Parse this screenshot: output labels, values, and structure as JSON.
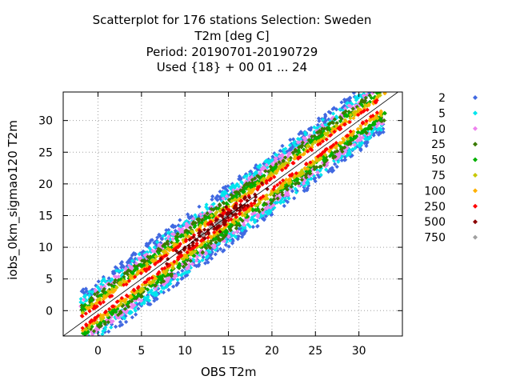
{
  "chart_data": {
    "type": "scatter",
    "title_lines": [
      "Scatterplot for  176 stations Selection: Sweden",
      "T2m [deg C]",
      "Period: 20190701-20190729",
      "Used {18} + 00 01 ... 24"
    ],
    "xlabel": "OBS T2m",
    "ylabel": "iobs_0km_sigmao120 T2m",
    "xlim": [
      -4,
      35
    ],
    "ylim": [
      -4,
      34.5
    ],
    "xticks": [
      0,
      5,
      10,
      15,
      20,
      25,
      30
    ],
    "yticks": [
      0,
      5,
      10,
      15,
      20,
      25,
      30
    ],
    "grid": true,
    "diagonal_line": true,
    "legend_position": "right",
    "legend_meaning": "point density count threshold per bin",
    "series": [
      {
        "name": "2",
        "color": "#4169e1",
        "spread": 4.2
      },
      {
        "name": "5",
        "color": "#00e5ee",
        "spread": 3.6
      },
      {
        "name": "10",
        "color": "#ee82ee",
        "spread": 3.0
      },
      {
        "name": "25",
        "color": "#3a7a00",
        "spread": 2.5
      },
      {
        "name": "50",
        "color": "#00b000",
        "spread": 2.0
      },
      {
        "name": "75",
        "color": "#c8c800",
        "spread": 1.6
      },
      {
        "name": "100",
        "color": "#ffb000",
        "spread": 1.25
      },
      {
        "name": "250",
        "color": "#ff0000",
        "spread": 0.95
      },
      {
        "name": "500",
        "color": "#8b0000",
        "spread": 0.5
      },
      {
        "name": "750",
        "color": "#a0a0a0",
        "spread": 0.15
      }
    ]
  }
}
